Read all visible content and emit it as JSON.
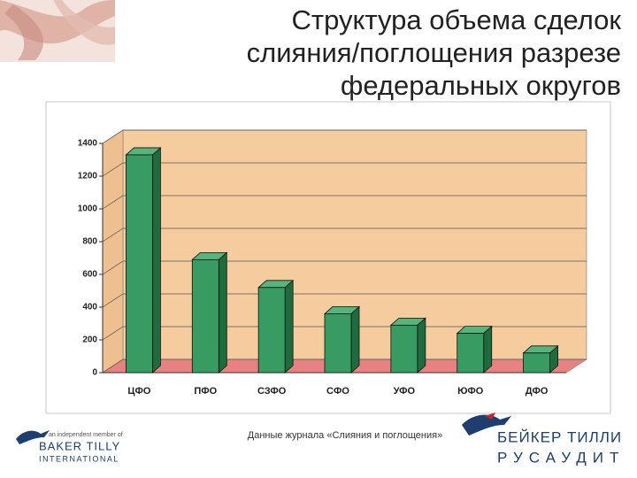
{
  "chart_data": {
    "type": "bar",
    "title": [
      "Структура объема сделок",
      "слияния/поглощения разрезе",
      "федеральных округов"
    ],
    "categories": [
      "ЦФО",
      "ПФО",
      "СЗФО",
      "СФО",
      "УФО",
      "ЮФО",
      "ДФО"
    ],
    "values": [
      1330,
      690,
      520,
      360,
      290,
      240,
      120
    ],
    "color": "#379b62",
    "ylim": [
      0,
      1400
    ],
    "yticks": [
      0,
      200,
      400,
      600,
      800,
      1000,
      1200,
      1400
    ],
    "grid": true
  },
  "footer": {
    "source": "Данные журнала «Слияния и поглощения»",
    "left_logo": [
      "an independent member of",
      "BAKER TILLY",
      "INTERNATIONAL"
    ],
    "right_logo": [
      "БЕЙКЕР ТИЛЛИ",
      "РУСАУДИТ"
    ]
  }
}
